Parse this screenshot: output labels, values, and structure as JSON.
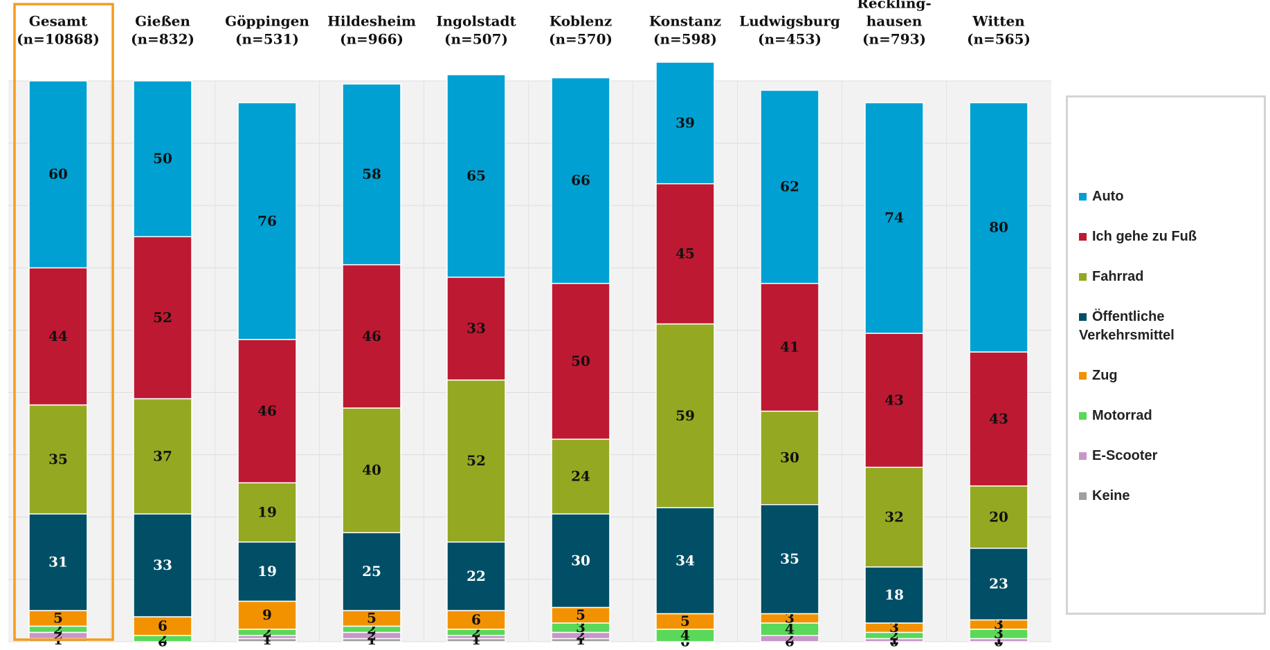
{
  "chart_data": {
    "type": "stacked-bar",
    "categories": [
      [
        "Gesamt",
        "(n=10868)"
      ],
      [
        "Gießen",
        "(n=832)"
      ],
      [
        "Göppingen",
        "(n=531)"
      ],
      [
        "Hildesheim",
        "(n=966)"
      ],
      [
        "Ingolstadt",
        "(n=507)"
      ],
      [
        "Koblenz",
        "(n=570)"
      ],
      [
        "Konstanz",
        "(n=598)"
      ],
      [
        "Ludwigsburg",
        "(n=453)"
      ],
      [
        "Reckling-",
        "hausen",
        "(n=793)"
      ],
      [
        "Witten",
        "(n=565)"
      ]
    ],
    "series": [
      {
        "name": "Auto",
        "color": "#00a0d2",
        "values": [
          60,
          50,
          76,
          58,
          65,
          66,
          39,
          62,
          74,
          80
        ]
      },
      {
        "name": "Ich gehe zu Fuß",
        "color": "#be1932",
        "values": [
          44,
          52,
          46,
          46,
          33,
          50,
          45,
          41,
          43,
          43
        ]
      },
      {
        "name": "Fahrrad",
        "color": "#95a822",
        "values": [
          35,
          37,
          19,
          40,
          52,
          24,
          59,
          30,
          32,
          20
        ]
      },
      {
        "name": "Öffentliche Verkehrsmittel",
        "color": "#004f66",
        "values": [
          31,
          33,
          19,
          25,
          22,
          30,
          34,
          35,
          18,
          23
        ]
      },
      {
        "name": "Zug",
        "color": "#f39200",
        "values": [
          5,
          6,
          9,
          5,
          6,
          5,
          5,
          3,
          3,
          3
        ]
      },
      {
        "name": "Motorrad",
        "color": "#5ad85a",
        "values": [
          2,
          2,
          2,
          2,
          2,
          3,
          4,
          4,
          2,
          3
        ]
      },
      {
        "name": "E-Scooter",
        "color": "#c896c8",
        "values": [
          2,
          0,
          1,
          2,
          1,
          2,
          0,
          2,
          1,
          1
        ]
      },
      {
        "name": "Keine",
        "color": "#a0a0a0",
        "values": [
          1,
          0,
          1,
          1,
          1,
          1,
          0,
          0,
          0,
          0
        ]
      }
    ],
    "ylim": [
      0,
      180
    ],
    "yticks": [
      0,
      20,
      40,
      60,
      80,
      100,
      120,
      140,
      160,
      180
    ],
    "grid": true,
    "highlight_color": "#f39c1e"
  }
}
